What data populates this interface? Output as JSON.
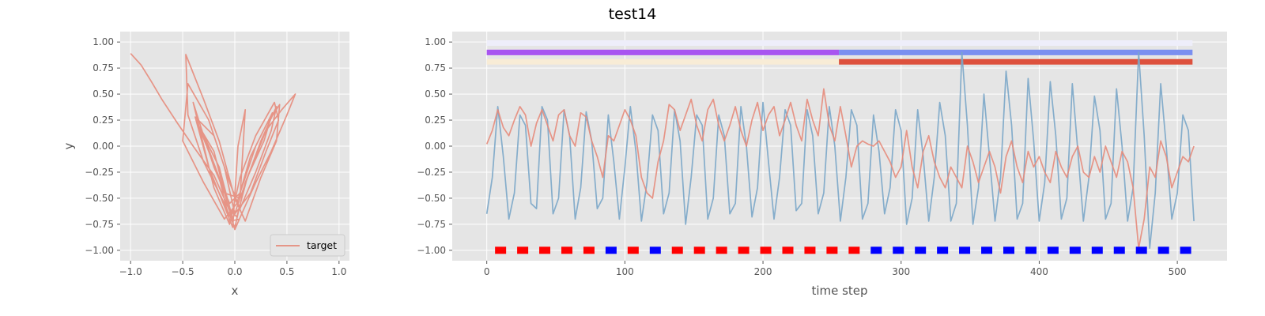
{
  "figure": {
    "title": "test14"
  },
  "chart_data": [
    {
      "type": "line",
      "panel": "xy-trajectory",
      "xlabel": "x",
      "ylabel": "y",
      "xlim": [
        -1.1,
        1.1
      ],
      "ylim": [
        -1.1,
        1.1
      ],
      "xticks": [
        "−1.0",
        "−0.5",
        "0.0",
        "0.5",
        "1.0"
      ],
      "yticks": [
        "1.00",
        "0.75",
        "0.50",
        "0.25",
        "0.00",
        "−0.25",
        "−0.50",
        "−0.75",
        "−1.00"
      ],
      "grid": true,
      "legend": {
        "placement": "lower-right",
        "entries": [
          "target"
        ]
      },
      "series": [
        {
          "name": "target",
          "color": "#e58b7b",
          "x": [
            -1.0,
            -0.9,
            -0.8,
            -0.7,
            -0.55,
            -0.4,
            -0.2,
            -0.05,
            0.0,
            0.08,
            0.2,
            0.35,
            0.5,
            0.58,
            0.45,
            0.3,
            0.1,
            0.0,
            -0.1,
            -0.3,
            -0.45,
            -0.47,
            -0.3,
            -0.15,
            0.0,
            0.1,
            0.25,
            0.4,
            0.43,
            0.3,
            0.15,
            0.02,
            -0.1,
            -0.3,
            -0.5,
            -0.45,
            -0.25,
            -0.1,
            0.0,
            0.15,
            0.3,
            0.42,
            0.38,
            0.2,
            0.05,
            -0.05,
            -0.2,
            -0.4,
            -0.3,
            -0.15,
            -0.02,
            0.05,
            0.1,
            0.03,
            -0.02,
            -0.25,
            -0.38,
            -0.2,
            -0.05,
            0.05,
            0.2,
            0.35,
            0.4,
            0.25,
            0.05,
            -0.1,
            -0.25,
            -0.35,
            -0.2,
            -0.06,
            0.02,
            0.12,
            0.28,
            0.36,
            0.2,
            0.05,
            -0.05,
            -0.2,
            -0.3,
            -0.15,
            -0.05,
            0.05
          ],
          "y": [
            0.89,
            0.78,
            0.62,
            0.45,
            0.22,
            0.0,
            -0.28,
            -0.62,
            -0.8,
            -0.62,
            -0.35,
            -0.05,
            0.3,
            0.5,
            0.35,
            0.15,
            -0.35,
            -0.78,
            -0.55,
            -0.15,
            0.3,
            0.88,
            0.45,
            0.05,
            -0.5,
            -0.72,
            -0.3,
            0.05,
            0.4,
            0.2,
            -0.1,
            -0.55,
            -0.7,
            -0.35,
            0.05,
            0.6,
            0.25,
            -0.2,
            -0.65,
            -0.45,
            -0.05,
            0.25,
            0.42,
            0.1,
            -0.3,
            -0.75,
            -0.4,
            0.42,
            0.1,
            -0.2,
            -0.7,
            -0.5,
            0.35,
            0.0,
            -0.78,
            -0.2,
            0.28,
            0.1,
            -0.35,
            -0.6,
            -0.25,
            0.15,
            0.38,
            0.05,
            -0.5,
            -0.45,
            -0.05,
            0.2,
            -0.05,
            -0.6,
            -0.68,
            -0.3,
            0.05,
            0.32,
            0.0,
            -0.45,
            -0.55,
            -0.2,
            0.1,
            -0.3,
            -0.72,
            -0.7
          ]
        }
      ]
    },
    {
      "type": "line",
      "panel": "time-series",
      "xlabel": "time step",
      "ylabel": "",
      "xlim": [
        -25,
        536
      ],
      "ylim": [
        -1.1,
        1.1
      ],
      "xticks": [
        "0",
        "100",
        "200",
        "300",
        "400",
        "500"
      ],
      "yticks": [
        "1.00",
        "0.75",
        "0.50",
        "0.25",
        "0.00",
        "−0.25",
        "−0.50",
        "−0.75",
        "−1.00"
      ],
      "grid": true,
      "series": [
        {
          "color": "#7aa6c8",
          "x": [
            0,
            4,
            8,
            12,
            16,
            20,
            24,
            28,
            32,
            36,
            40,
            44,
            48,
            52,
            56,
            60,
            64,
            68,
            72,
            76,
            80,
            84,
            88,
            92,
            96,
            100,
            104,
            108,
            112,
            116,
            120,
            124,
            128,
            132,
            136,
            140,
            144,
            148,
            152,
            156,
            160,
            164,
            168,
            172,
            176,
            180,
            184,
            188,
            192,
            196,
            200,
            204,
            208,
            212,
            216,
            220,
            224,
            228,
            232,
            236,
            240,
            244,
            248,
            252,
            256,
            260,
            264,
            268,
            272,
            276,
            280,
            284,
            288,
            292,
            296,
            300,
            304,
            308,
            312,
            316,
            320,
            324,
            328,
            332,
            336,
            340,
            344,
            348,
            352,
            356,
            360,
            364,
            368,
            372,
            376,
            380,
            384,
            388,
            392,
            396,
            400,
            404,
            408,
            412,
            416,
            420,
            424,
            428,
            432,
            436,
            440,
            444,
            448,
            452,
            456,
            460,
            464,
            468,
            472,
            476,
            480,
            484,
            488,
            492,
            496,
            500,
            504,
            508,
            512
          ],
          "y": [
            -0.65,
            -0.3,
            0.38,
            -0.1,
            -0.7,
            -0.45,
            0.3,
            0.2,
            -0.55,
            -0.6,
            0.38,
            0.25,
            -0.65,
            -0.5,
            0.35,
            0.1,
            -0.7,
            -0.4,
            0.33,
            0.05,
            -0.6,
            -0.5,
            0.3,
            -0.15,
            -0.7,
            -0.2,
            0.38,
            -0.05,
            -0.72,
            -0.35,
            0.3,
            0.15,
            -0.65,
            -0.45,
            0.35,
            0.05,
            -0.75,
            -0.3,
            0.3,
            0.2,
            -0.7,
            -0.5,
            0.3,
            0.1,
            -0.65,
            -0.55,
            0.38,
            0.0,
            -0.68,
            -0.4,
            0.42,
            -0.15,
            -0.7,
            -0.3,
            0.35,
            0.2,
            -0.62,
            -0.55,
            0.35,
            0.1,
            -0.65,
            -0.45,
            0.38,
            0.0,
            -0.72,
            -0.3,
            0.35,
            0.2,
            -0.7,
            -0.55,
            0.3,
            -0.05,
            -0.65,
            -0.4,
            0.35,
            0.15,
            -0.75,
            -0.5,
            0.35,
            -0.1,
            -0.72,
            -0.3,
            0.42,
            0.1,
            -0.72,
            -0.55,
            0.9,
            0.2,
            -0.75,
            -0.4,
            0.5,
            -0.1,
            -0.72,
            -0.3,
            0.72,
            0.2,
            -0.7,
            -0.55,
            0.65,
            0.05,
            -0.72,
            -0.35,
            0.62,
            0.1,
            -0.7,
            -0.5,
            0.6,
            -0.05,
            -0.72,
            -0.3,
            0.48,
            0.15,
            -0.7,
            -0.55,
            0.55,
            0.0,
            -0.72,
            -0.4,
            0.9,
            0.1,
            -0.98,
            -0.45,
            0.6,
            0.0,
            -0.7,
            -0.45,
            0.3,
            0.15,
            -0.72
          ]
        },
        {
          "color": "#e58b7b",
          "x": [
            0,
            4,
            8,
            12,
            16,
            20,
            24,
            28,
            32,
            36,
            40,
            44,
            48,
            52,
            56,
            60,
            64,
            68,
            72,
            76,
            80,
            84,
            88,
            92,
            96,
            100,
            104,
            108,
            112,
            116,
            120,
            124,
            128,
            132,
            136,
            140,
            144,
            148,
            152,
            156,
            160,
            164,
            168,
            172,
            176,
            180,
            184,
            188,
            192,
            196,
            200,
            204,
            208,
            212,
            216,
            220,
            224,
            228,
            232,
            236,
            240,
            244,
            248,
            252,
            256,
            260,
            264,
            268,
            272,
            276,
            280,
            284,
            288,
            292,
            296,
            300,
            304,
            308,
            312,
            316,
            320,
            324,
            328,
            332,
            336,
            340,
            344,
            348,
            352,
            356,
            360,
            364,
            368,
            372,
            376,
            380,
            384,
            388,
            392,
            396,
            400,
            404,
            408,
            412,
            416,
            420,
            424,
            428,
            432,
            436,
            440,
            444,
            448,
            452,
            456,
            460,
            464,
            468,
            472,
            476,
            480,
            484,
            488,
            492,
            496,
            500,
            504,
            508,
            512
          ],
          "y": [
            0.02,
            0.15,
            0.35,
            0.18,
            0.1,
            0.25,
            0.38,
            0.3,
            0.0,
            0.22,
            0.35,
            0.2,
            0.05,
            0.3,
            0.35,
            0.1,
            0.0,
            0.32,
            0.28,
            0.05,
            -0.1,
            -0.3,
            0.1,
            0.05,
            0.2,
            0.35,
            0.25,
            0.1,
            -0.3,
            -0.45,
            -0.5,
            -0.15,
            0.05,
            0.4,
            0.35,
            0.15,
            0.3,
            0.45,
            0.2,
            0.05,
            0.35,
            0.45,
            0.2,
            0.05,
            0.2,
            0.38,
            0.15,
            0.0,
            0.25,
            0.42,
            0.15,
            0.3,
            0.38,
            0.1,
            0.25,
            0.42,
            0.2,
            0.05,
            0.45,
            0.25,
            0.1,
            0.55,
            0.2,
            0.05,
            0.38,
            0.1,
            -0.2,
            0.0,
            0.05,
            0.02,
            0.0,
            0.05,
            -0.05,
            -0.15,
            -0.3,
            -0.2,
            0.15,
            -0.2,
            -0.4,
            -0.05,
            0.1,
            -0.15,
            -0.3,
            -0.4,
            -0.2,
            -0.3,
            -0.4,
            0.0,
            -0.15,
            -0.35,
            -0.2,
            -0.05,
            -0.2,
            -0.45,
            -0.1,
            0.05,
            -0.2,
            -0.35,
            -0.05,
            -0.2,
            -0.1,
            -0.25,
            -0.35,
            -0.05,
            -0.2,
            -0.3,
            -0.1,
            0.0,
            -0.25,
            -0.3,
            -0.1,
            -0.25,
            0.0,
            -0.15,
            -0.3,
            -0.05,
            -0.15,
            -0.4,
            -0.98,
            -0.7,
            -0.2,
            -0.3,
            0.05,
            -0.1,
            -0.4,
            -0.25,
            -0.1,
            -0.15,
            0.0
          ]
        }
      ],
      "bands": [
        {
          "color": "#eeeefa",
          "x_start": 0,
          "x_end": 511,
          "y": 0.99
        },
        {
          "color": "#a855f0",
          "x_start": 0,
          "x_end": 255,
          "y": 0.9
        },
        {
          "color": "#7a8ff0",
          "x_start": 255,
          "x_end": 511,
          "y": 0.9
        },
        {
          "color": "#f8ecd6",
          "x_start": 0,
          "x_end": 255,
          "y": 0.81
        },
        {
          "color": "#dd513d",
          "x_start": 255,
          "x_end": 511,
          "y": 0.81
        }
      ],
      "markers": {
        "y": -1.0,
        "x": [
          10,
          26,
          42,
          58,
          74,
          90,
          106,
          122,
          138,
          154,
          170,
          186,
          202,
          218,
          234,
          250,
          266,
          282,
          298,
          314,
          330,
          346,
          362,
          378,
          394,
          410,
          426,
          442,
          458,
          474,
          490,
          506
        ],
        "colors": [
          "#ff0000",
          "#ff0000",
          "#ff0000",
          "#ff0000",
          "#ff0000",
          "#0000ff",
          "#ff0000",
          "#0000ff",
          "#ff0000",
          "#ff0000",
          "#ff0000",
          "#ff0000",
          "#ff0000",
          "#ff0000",
          "#ff0000",
          "#ff0000",
          "#ff0000",
          "#0000ff",
          "#0000ff",
          "#0000ff",
          "#0000ff",
          "#0000ff",
          "#0000ff",
          "#0000ff",
          "#0000ff",
          "#0000ff",
          "#0000ff",
          "#0000ff",
          "#0000ff",
          "#0000ff",
          "#0000ff",
          "#0000ff"
        ]
      }
    }
  ]
}
